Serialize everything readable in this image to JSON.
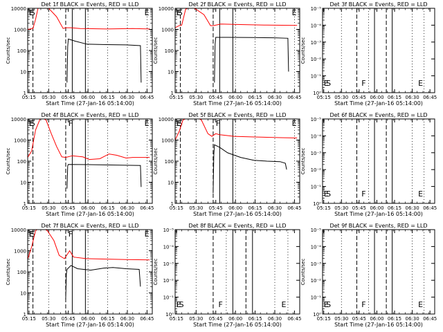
{
  "colors": {
    "background": "#ffffff",
    "axis": "#000000",
    "events": "#000000",
    "lld": "#ff0000"
  },
  "chart_data": [
    {
      "type": "line",
      "title": "Det 1f BLACK = Events, RED = LLD",
      "xlabel": "Start Time (27-Jan-16 05:14:00)",
      "ylabel": "Counts/sec",
      "x_ticks": [
        "05:15",
        "05:30",
        "05:45",
        "06:00",
        "06:15",
        "06:30",
        "06:45"
      ],
      "x_range_min": [
        0,
        95
      ],
      "yscale": "log",
      "ylim": [
        1,
        10000
      ],
      "y_ticks": [
        "1",
        "10",
        "100",
        "1000",
        "10000"
      ],
      "dense_ticks": false,
      "markers": [
        {
          "label": "E",
          "x": 1
        },
        {
          "label": "S",
          "x": 2
        },
        {
          "label": "E",
          "x": 89
        }
      ],
      "dashed_lines": [
        4,
        29
      ],
      "solid_lines": [
        34,
        44
      ],
      "dotted_lines": [
        16,
        46,
        61,
        76,
        91
      ],
      "series": [
        {
          "color": "red",
          "points": [
            [
              0,
              1000
            ],
            [
              4,
              1100
            ],
            [
              6,
              3000
            ],
            [
              8,
              11000
            ],
            [
              13,
              13000
            ],
            [
              16,
              10000
            ],
            [
              22,
              4000
            ],
            [
              27,
              1100
            ],
            [
              29,
              1200
            ],
            [
              33,
              1200
            ],
            [
              40,
              1100
            ],
            [
              60,
              1050
            ],
            [
              80,
              1100
            ],
            [
              93,
              1050
            ]
          ]
        },
        {
          "color": "black",
          "points": [
            [
              30,
              3
            ],
            [
              30.5,
              150
            ],
            [
              31,
              350
            ],
            [
              36,
              280
            ],
            [
              45,
              200
            ],
            [
              60,
              190
            ],
            [
              75,
              185
            ],
            [
              86,
              170
            ],
            [
              86.5,
              3
            ]
          ]
        }
      ]
    },
    {
      "type": "line",
      "title": "Det 2f BLACK = Events, RED = LLD",
      "xlabel": "Start Time (27-Jan-16 05:14:00)",
      "ylabel": "Counts/sec",
      "x_ticks": [
        "05:15",
        "05:30",
        "05:45",
        "06:00",
        "06:15",
        "06:30",
        "06:45"
      ],
      "x_range_min": [
        0,
        95
      ],
      "yscale": "log",
      "ylim": [
        1,
        10000
      ],
      "y_ticks": [
        "1",
        "10",
        "100",
        "1000",
        "10000"
      ],
      "dense_ticks": false,
      "markers": [
        {
          "label": "E",
          "x": 1
        },
        {
          "label": "S",
          "x": 2
        },
        {
          "label": "E",
          "x": 89
        }
      ],
      "dashed_lines": [
        4,
        29
      ],
      "solid_lines": [
        34,
        44
      ],
      "dotted_lines": [
        16,
        46,
        61,
        76,
        91
      ],
      "series": [
        {
          "color": "red",
          "points": [
            [
              0,
              1200
            ],
            [
              3,
              1500
            ],
            [
              5,
              1600
            ],
            [
              8,
              9000
            ],
            [
              12,
              12000
            ],
            [
              16,
              9000
            ],
            [
              22,
              5000
            ],
            [
              27,
              1500
            ],
            [
              29,
              1500
            ],
            [
              35,
              1800
            ],
            [
              50,
              1700
            ],
            [
              70,
              1600
            ],
            [
              93,
              1550
            ]
          ]
        },
        {
          "color": "black",
          "points": [
            [
              30,
              3
            ],
            [
              30.5,
              200
            ],
            [
              31,
              420
            ],
            [
              40,
              420
            ],
            [
              60,
              410
            ],
            [
              75,
              400
            ],
            [
              86,
              380
            ],
            [
              86.5,
              10
            ]
          ]
        }
      ]
    },
    {
      "type": "line",
      "title": "Det 3f BLACK = Events, RED = LLD",
      "xlabel": "Start Time (27-Jan-16 05:14:00)",
      "ylabel": "Counts/sec",
      "x_ticks": [
        "05:15",
        "05:30",
        "05:45",
        "06:00",
        "06:15",
        "06:30",
        "06:45"
      ],
      "x_range_min": [
        0,
        95
      ],
      "yscale": "log",
      "ylim": [
        1,
        10000
      ],
      "y_ticks": [
        "10⁰",
        "10⁻¹",
        "10⁻²",
        "10⁻³",
        "10⁻⁴",
        "10⁻⁵"
      ],
      "dense_ticks": true,
      "markers": [
        {
          "label": "E",
          "x": 1
        },
        {
          "label": "S",
          "x": 3
        },
        {
          "label": "F",
          "x": 33
        },
        {
          "label": "E",
          "x": 81
        }
      ],
      "dashed_lines": [
        29,
        54
      ],
      "solid_lines": [
        44,
        59
      ],
      "dotted_lines": [
        16,
        39,
        76,
        86
      ],
      "series": []
    },
    {
      "type": "line",
      "title": "Det 4f BLACK = Events, RED = LLD",
      "xlabel": "Start Time (27-Jan-16 05:14:00)",
      "ylabel": "Counts/sec",
      "x_ticks": [
        "05:15",
        "05:30",
        "05:45",
        "06:00",
        "06:15",
        "06:30",
        "06:45"
      ],
      "x_range_min": [
        0,
        95
      ],
      "yscale": "log",
      "ylim": [
        1,
        10000
      ],
      "y_ticks": [
        "1",
        "10",
        "100",
        "1000",
        "10000"
      ],
      "dense_ticks": false,
      "markers": [
        {
          "label": "E",
          "x": 1
        },
        {
          "label": "S",
          "x": 2
        },
        {
          "label": "F",
          "x": 31
        },
        {
          "label": "E",
          "x": 89
        }
      ],
      "dashed_lines": [
        4,
        29
      ],
      "solid_lines": [
        34,
        44
      ],
      "dotted_lines": [
        16,
        46,
        61,
        76,
        91
      ],
      "series": [
        {
          "color": "red",
          "points": [
            [
              0,
              150
            ],
            [
              3,
              300
            ],
            [
              6,
              3000
            ],
            [
              10,
              12000
            ],
            [
              14,
              9000
            ],
            [
              18,
              2000
            ],
            [
              22,
              500
            ],
            [
              26,
              160
            ],
            [
              29,
              150
            ],
            [
              34,
              180
            ],
            [
              42,
              160
            ],
            [
              47,
              120
            ],
            [
              55,
              130
            ],
            [
              62,
              220
            ],
            [
              68,
              190
            ],
            [
              75,
              140
            ],
            [
              80,
              150
            ],
            [
              88,
              150
            ],
            [
              93,
              150
            ]
          ]
        },
        {
          "color": "black",
          "points": [
            [
              30,
              5
            ],
            [
              30.5,
              60
            ],
            [
              31,
              70
            ],
            [
              50,
              68
            ],
            [
              70,
              65
            ],
            [
              86,
              62
            ],
            [
              86.5,
              6
            ]
          ]
        }
      ]
    },
    {
      "type": "line",
      "title": "Det 5f BLACK = Events, RED = LLD",
      "xlabel": "Start Time (27-Jan-16 05:14:00)",
      "ylabel": "Counts/sec",
      "x_ticks": [
        "05:15",
        "05:30",
        "05:45",
        "06:00",
        "06:15",
        "06:30",
        "06:45"
      ],
      "x_range_min": [
        0,
        95
      ],
      "yscale": "log",
      "ylim": [
        1,
        10000
      ],
      "y_ticks": [
        "1",
        "10",
        "100",
        "1000",
        "10000"
      ],
      "dense_ticks": false,
      "markers": [
        {
          "label": "E",
          "x": 1
        },
        {
          "label": "S",
          "x": 2
        },
        {
          "label": "F",
          "x": 31
        },
        {
          "label": "E",
          "x": 89
        }
      ],
      "dashed_lines": [
        4,
        29
      ],
      "solid_lines": [
        34,
        44
      ],
      "dotted_lines": [
        16,
        46,
        61,
        76,
        91
      ],
      "series": [
        {
          "color": "red",
          "points": [
            [
              0,
              1000
            ],
            [
              3,
              2500
            ],
            [
              6,
              9000
            ],
            [
              12,
              13000
            ],
            [
              16,
              12000
            ],
            [
              20,
              9000
            ],
            [
              25,
              2000
            ],
            [
              28,
              1500
            ],
            [
              31,
              2000
            ],
            [
              34,
              1800
            ],
            [
              45,
              1500
            ],
            [
              60,
              1400
            ],
            [
              80,
              1300
            ],
            [
              93,
              1250
            ]
          ]
        },
        {
          "color": "black",
          "points": [
            [
              29,
              3
            ],
            [
              29.5,
              200
            ],
            [
              30,
              600
            ],
            [
              34,
              450
            ],
            [
              40,
              250
            ],
            [
              50,
              150
            ],
            [
              60,
              110
            ],
            [
              70,
              100
            ],
            [
              80,
              95
            ],
            [
              84,
              80
            ],
            [
              85,
              40
            ]
          ]
        }
      ]
    },
    {
      "type": "line",
      "title": "Det 6f BLACK = Events, RED = LLD",
      "xlabel": "Start Time (27-Jan-16 05:14:00)",
      "ylabel": "Counts/sec",
      "x_ticks": [
        "05:15",
        "05:30",
        "05:45",
        "06:00",
        "06:15",
        "06:30",
        "06:45"
      ],
      "x_range_min": [
        0,
        95
      ],
      "yscale": "log",
      "ylim": [
        1,
        10000
      ],
      "y_ticks": [
        "10⁰",
        "10⁻¹",
        "10⁻²",
        "10⁻³",
        "10⁻⁴",
        "10⁻⁵"
      ],
      "dense_ticks": true,
      "markers": [
        {
          "label": "E",
          "x": 1
        },
        {
          "label": "S",
          "x": 3
        },
        {
          "label": "F",
          "x": 33
        },
        {
          "label": "E",
          "x": 81
        }
      ],
      "dashed_lines": [
        29,
        54
      ],
      "solid_lines": [
        44,
        59
      ],
      "dotted_lines": [
        16,
        39,
        76,
        86
      ],
      "series": []
    },
    {
      "type": "line",
      "title": "Det 7f BLACK = Events, RED = LLD",
      "xlabel": "Start Time (27-Jan-16 05:14:00)",
      "ylabel": "Counts/sec",
      "x_ticks": [
        "05:15",
        "05:30",
        "05:45",
        "06:00",
        "06:15",
        "06:30",
        "06:45"
      ],
      "x_range_min": [
        0,
        95
      ],
      "yscale": "log",
      "ylim": [
        1,
        10000
      ],
      "y_ticks": [
        "1",
        "10",
        "100",
        "1000",
        "10000"
      ],
      "dense_ticks": false,
      "markers": [
        {
          "label": "E",
          "x": 1
        },
        {
          "label": "S",
          "x": 2
        },
        {
          "label": "F",
          "x": 31
        },
        {
          "label": "E",
          "x": 89
        }
      ],
      "dashed_lines": [
        4,
        29
      ],
      "solid_lines": [
        34,
        44
      ],
      "dotted_lines": [
        16,
        46,
        61,
        76,
        91
      ],
      "series": [
        {
          "color": "red",
          "points": [
            [
              0,
              400
            ],
            [
              3,
              1500
            ],
            [
              6,
              9000
            ],
            [
              10,
              13000
            ],
            [
              15,
              9000
            ],
            [
              20,
              3000
            ],
            [
              24,
              600
            ],
            [
              28,
              420
            ],
            [
              32,
              1000
            ],
            [
              35,
              500
            ],
            [
              45,
              420
            ],
            [
              60,
              400
            ],
            [
              75,
              380
            ],
            [
              93,
              370
            ]
          ]
        },
        {
          "color": "black",
          "points": [
            [
              29,
              5
            ],
            [
              29.5,
              80
            ],
            [
              30,
              130
            ],
            [
              33,
              200
            ],
            [
              38,
              140
            ],
            [
              48,
              120
            ],
            [
              58,
              150
            ],
            [
              65,
              160
            ],
            [
              75,
              140
            ],
            [
              85,
              130
            ],
            [
              86,
              20
            ]
          ]
        }
      ]
    },
    {
      "type": "line",
      "title": "Det 8f BLACK = Events, RED = LLD",
      "xlabel": "Start Time (27-Jan-16 05:14:00)",
      "ylabel": "Counts/sec",
      "x_ticks": [
        "05:15",
        "05:30",
        "05:45",
        "06:00",
        "06:15",
        "06:30",
        "06:45"
      ],
      "x_range_min": [
        0,
        95
      ],
      "yscale": "log",
      "ylim": [
        1,
        10000
      ],
      "y_ticks": [
        "10⁰",
        "10⁻¹",
        "10⁻²",
        "10⁻³",
        "10⁻⁴",
        "10⁻⁵"
      ],
      "dense_ticks": true,
      "markers": [
        {
          "label": "E",
          "x": 1
        },
        {
          "label": "S",
          "x": 3
        },
        {
          "label": "F",
          "x": 33
        },
        {
          "label": "E",
          "x": 81
        }
      ],
      "dashed_lines": [
        29,
        54
      ],
      "solid_lines": [
        44,
        59
      ],
      "dotted_lines": [
        16,
        39,
        76,
        86
      ],
      "series": []
    },
    {
      "type": "line",
      "title": "Det 9f BLACK = Events, RED = LLD",
      "xlabel": "Start Time (27-Jan-16 05:14:00)",
      "ylabel": "Counts/sec",
      "x_ticks": [
        "05:15",
        "05:30",
        "05:45",
        "06:00",
        "06:15",
        "06:30",
        "06:45"
      ],
      "x_range_min": [
        0,
        95
      ],
      "yscale": "log",
      "ylim": [
        1,
        10000
      ],
      "y_ticks": [
        "10⁰",
        "10⁻¹",
        "10⁻²",
        "10⁻³",
        "10⁻⁴",
        "10⁻⁵"
      ],
      "dense_ticks": true,
      "markers": [
        {
          "label": "E",
          "x": 1
        },
        {
          "label": "S",
          "x": 3
        },
        {
          "label": "F",
          "x": 33
        },
        {
          "label": "E",
          "x": 81
        }
      ],
      "dashed_lines": [
        29,
        54
      ],
      "solid_lines": [
        44,
        59
      ],
      "dotted_lines": [
        16,
        39,
        76,
        86
      ],
      "series": []
    }
  ]
}
